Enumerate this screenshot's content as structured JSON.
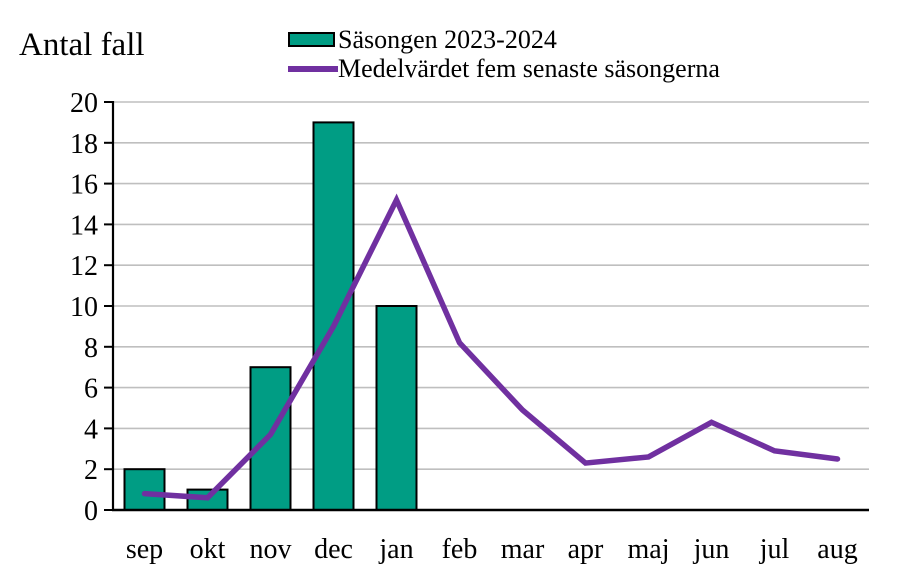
{
  "title": "Antal fall",
  "legend": {
    "items": [
      {
        "label": "Säsongen 2023-2024",
        "marker": "bar-swatch",
        "color": "#009D84"
      },
      {
        "label": "Medelvärdet fem senaste säsongerna",
        "marker": "line-swatch",
        "color": "#7030A0"
      }
    ]
  },
  "chart_data": {
    "type": "bar",
    "title": "Antal fall",
    "categories": [
      "sep",
      "okt",
      "nov",
      "dec",
      "jan",
      "feb",
      "mar",
      "apr",
      "maj",
      "jun",
      "jul",
      "aug"
    ],
    "series": [
      {
        "name": "Säsongen 2023-2024",
        "type": "bar",
        "color": "#009D84",
        "values": [
          2,
          1,
          7,
          19,
          10,
          0,
          0,
          0,
          0,
          0,
          0,
          0
        ]
      },
      {
        "name": "Medelvärdet fem senaste säsongerna",
        "type": "line",
        "color": "#7030A0",
        "values": [
          0.8,
          0.6,
          3.7,
          9.0,
          15.2,
          8.2,
          4.9,
          2.3,
          2.6,
          4.3,
          2.9,
          2.5
        ]
      }
    ],
    "xlabel": "",
    "ylabel": "Antal fall",
    "ylim": [
      0,
      20
    ],
    "ytick_step": 2,
    "grid": true,
    "gridline_color": "#BFBFBF",
    "axis_color": "#000000",
    "bar_outline_color": "#000000",
    "legend_position": "top"
  }
}
